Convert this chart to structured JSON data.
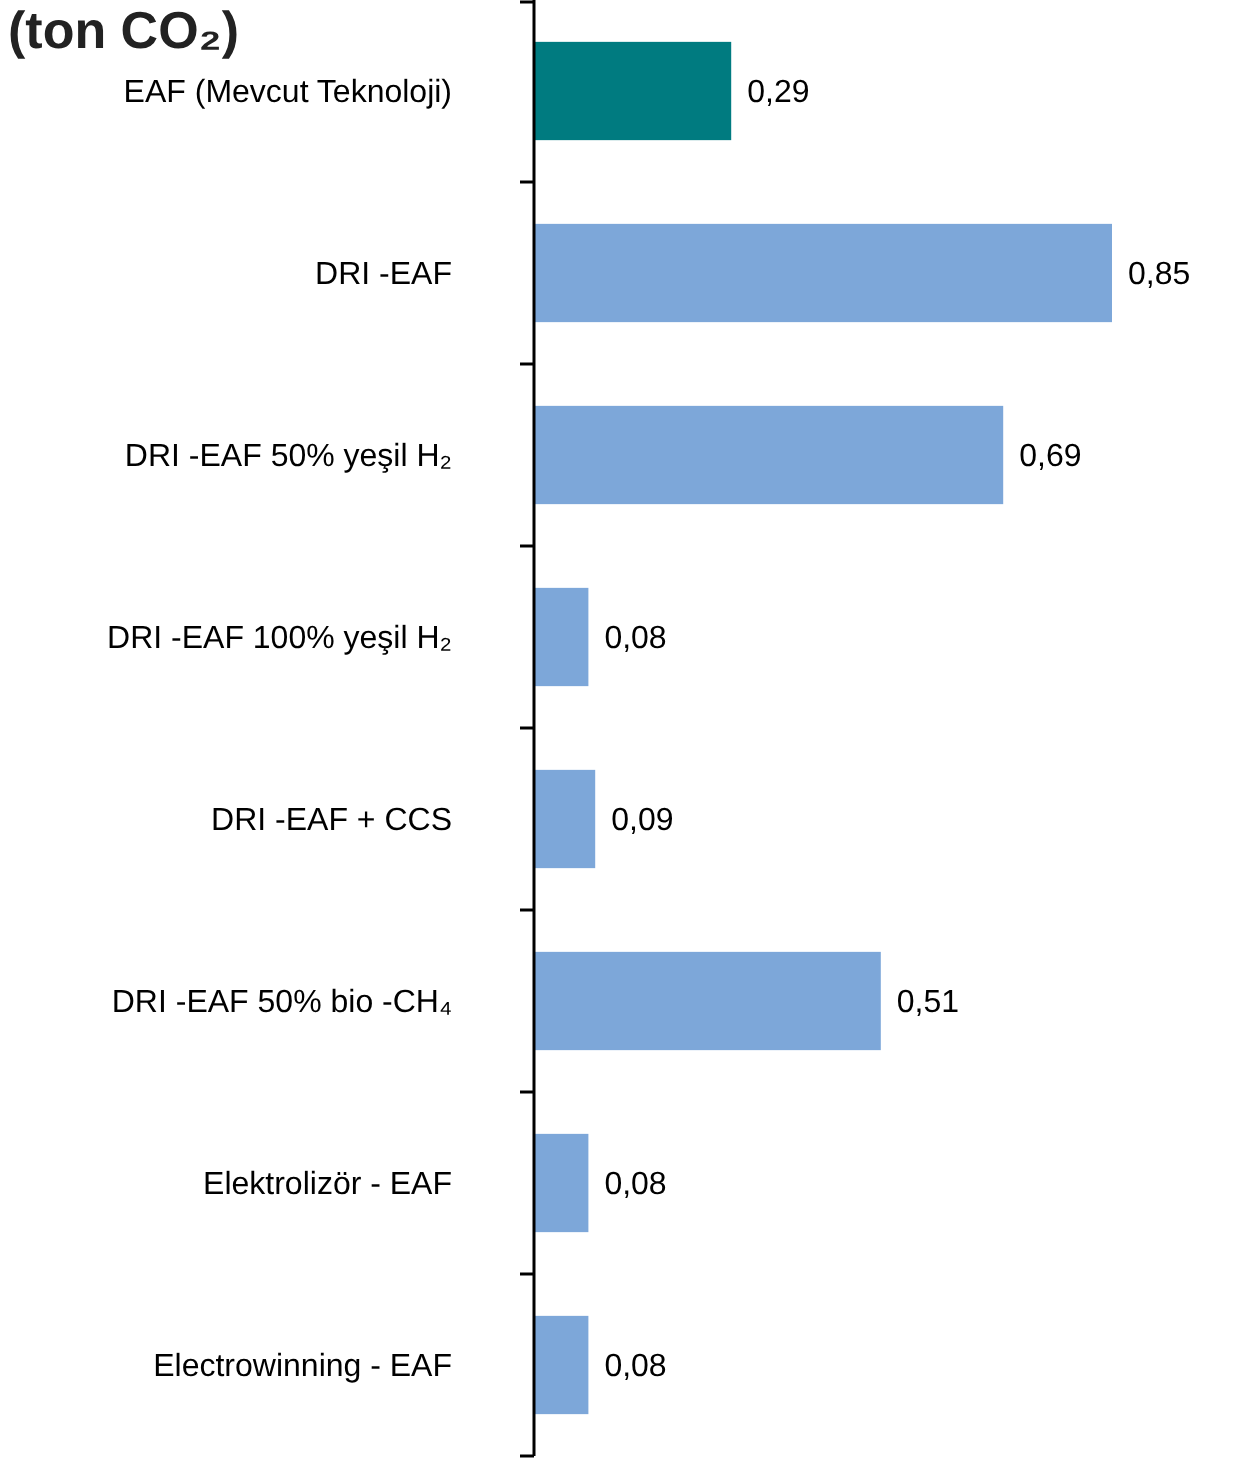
{
  "chart_data": {
    "type": "bar",
    "orientation": "horizontal",
    "title": "(ton CO₂)",
    "categories": [
      "EAF (Mevcut Teknoloji)",
      "DRI -EAF",
      "DRI -EAF 50% yeşil H₂",
      "DRI -EAF 100% yeşil H₂",
      "DRI -EAF + CCS",
      "DRI -EAF 50% bio -CH₄",
      "Elektrolizör - EAF",
      "Electrowinning - EAF"
    ],
    "values": [
      0.29,
      0.85,
      0.69,
      0.08,
      0.09,
      0.51,
      0.08,
      0.08
    ],
    "colors": [
      "#007b80",
      "#7da7d9",
      "#7da7d9",
      "#7da7d9",
      "#7da7d9",
      "#7da7d9",
      "#7da7d9",
      "#7da7d9"
    ],
    "value_labels": [
      "0,29",
      "0,85",
      "0,69",
      "0,08",
      "0,09",
      "0,51",
      "0,08",
      "0,08"
    ],
    "tick_labels": "y"
  }
}
